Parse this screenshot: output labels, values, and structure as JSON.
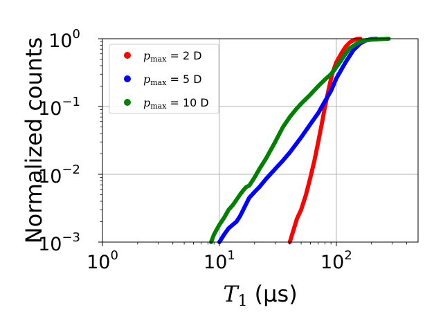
{
  "chart_data": {
    "type": "scatter",
    "xscale": "log",
    "yscale": "log",
    "xlim": [
      1,
      500
    ],
    "ylim": [
      0.001,
      1
    ],
    "xlabel_symbol": "T",
    "xlabel_sub": "1",
    "xlabel_unit": "(µs)",
    "ylabel": "Normalized counts",
    "grid": true,
    "legend_position": "upper-left",
    "x_ticks": [
      {
        "value": 1,
        "base": "10",
        "exp": "0"
      },
      {
        "value": 10,
        "base": "10",
        "exp": "1"
      },
      {
        "value": 100,
        "base": "10",
        "exp": "2"
      }
    ],
    "y_ticks": [
      {
        "value": 0.001,
        "base": "10",
        "exp": "−3"
      },
      {
        "value": 0.01,
        "base": "10",
        "exp": "−2"
      },
      {
        "value": 0.1,
        "base": "10",
        "exp": "−1"
      },
      {
        "value": 1,
        "base": "10",
        "exp": "0"
      }
    ],
    "series": [
      {
        "legend_symbol": "p",
        "legend_sub": "max",
        "name": "= 2 D",
        "color": "#ff0000",
        "points": [
          [
            40,
            0.001
          ],
          [
            43,
            0.0015
          ],
          [
            46,
            0.0022
          ],
          [
            50,
            0.003
          ],
          [
            55,
            0.005
          ],
          [
            60,
            0.009
          ],
          [
            65,
            0.016
          ],
          [
            70,
            0.03
          ],
          [
            75,
            0.055
          ],
          [
            80,
            0.1
          ],
          [
            86,
            0.18
          ],
          [
            92,
            0.3
          ],
          [
            100,
            0.45
          ],
          [
            110,
            0.6
          ],
          [
            120,
            0.76
          ],
          [
            130,
            0.88
          ],
          [
            140,
            0.95
          ],
          [
            150,
            0.99
          ],
          [
            160,
            1.0
          ]
        ]
      },
      {
        "legend_symbol": "p",
        "legend_sub": "max",
        "name": "= 5 D",
        "color": "#0000ff",
        "points": [
          [
            10,
            0.001
          ],
          [
            11,
            0.0013
          ],
          [
            12,
            0.0016
          ],
          [
            13,
            0.0018
          ],
          [
            14,
            0.002
          ],
          [
            15,
            0.0024
          ],
          [
            16,
            0.003
          ],
          [
            17,
            0.0037
          ],
          [
            18,
            0.0045
          ],
          [
            20,
            0.0055
          ],
          [
            22,
            0.0065
          ],
          [
            25,
            0.0085
          ],
          [
            30,
            0.012
          ],
          [
            35,
            0.016
          ],
          [
            40,
            0.021
          ],
          [
            50,
            0.035
          ],
          [
            60,
            0.055
          ],
          [
            70,
            0.08
          ],
          [
            80,
            0.12
          ],
          [
            90,
            0.17
          ],
          [
            100,
            0.26
          ],
          [
            120,
            0.45
          ],
          [
            140,
            0.68
          ],
          [
            160,
            0.85
          ],
          [
            180,
            0.95
          ],
          [
            200,
            0.99
          ],
          [
            220,
            1.0
          ]
        ]
      },
      {
        "legend_symbol": "p",
        "legend_sub": "max",
        "name": "= 10 D",
        "color": "#008000",
        "points": [
          [
            8.5,
            0.001
          ],
          [
            9,
            0.0013
          ],
          [
            10,
            0.0018
          ],
          [
            11,
            0.0023
          ],
          [
            12,
            0.003
          ],
          [
            13,
            0.0035
          ],
          [
            14,
            0.0042
          ],
          [
            15,
            0.005
          ],
          [
            16,
            0.0058
          ],
          [
            17,
            0.0065
          ],
          [
            18,
            0.0068
          ],
          [
            20,
            0.009
          ],
          [
            22,
            0.012
          ],
          [
            25,
            0.017
          ],
          [
            30,
            0.03
          ],
          [
            35,
            0.05
          ],
          [
            40,
            0.07
          ],
          [
            45,
            0.09
          ],
          [
            50,
            0.11
          ],
          [
            60,
            0.15
          ],
          [
            70,
            0.2
          ],
          [
            80,
            0.25
          ],
          [
            90,
            0.3
          ],
          [
            100,
            0.38
          ],
          [
            110,
            0.48
          ],
          [
            120,
            0.6
          ],
          [
            130,
            0.72
          ],
          [
            150,
            0.85
          ],
          [
            170,
            0.93
          ],
          [
            200,
            0.97
          ],
          [
            250,
            0.99
          ],
          [
            280,
            1.0
          ]
        ]
      }
    ]
  }
}
